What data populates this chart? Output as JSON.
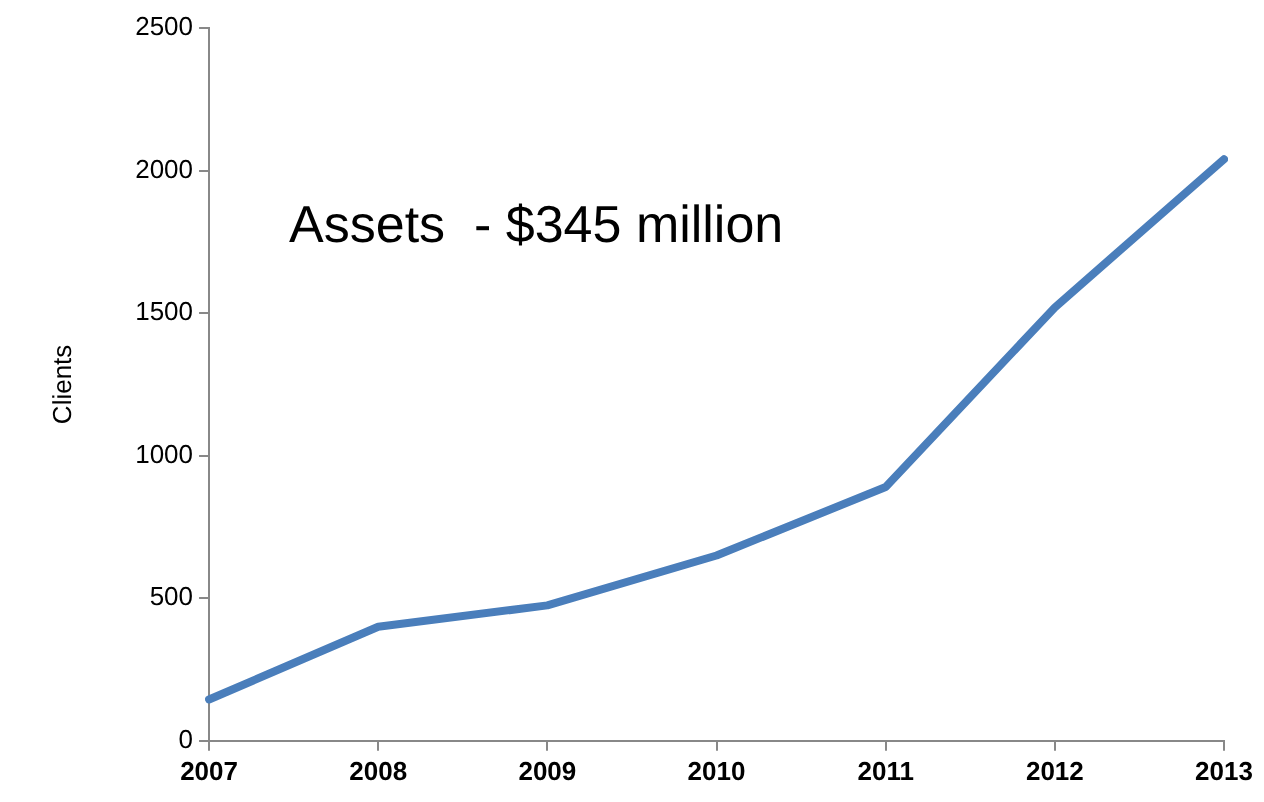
{
  "chart_data": {
    "type": "line",
    "ylabel": "Clients",
    "annotations": [
      "Assets  - $345 million"
    ],
    "categories": [
      "2007",
      "2008",
      "2009",
      "2010",
      "2011",
      "2012",
      "2013"
    ],
    "series": [
      {
        "color": "#4a7ebb",
        "values": [
          145,
          400,
          475,
          650,
          890,
          1520,
          2040
        ]
      }
    ],
    "ylim": [
      0,
      2500
    ],
    "yticks": [
      0,
      500,
      1000,
      1500,
      2000,
      2500
    ],
    "grid": false,
    "legend": false,
    "marker": "none",
    "line_style": "solid"
  }
}
